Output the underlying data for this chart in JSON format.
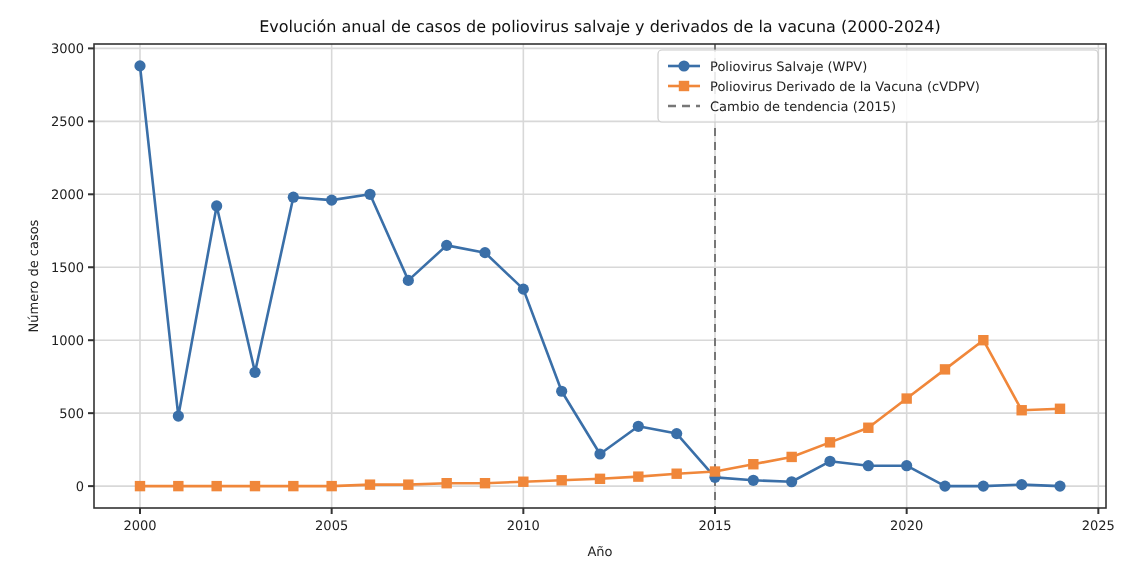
{
  "chart_data": {
    "type": "line",
    "title": "Evolución anual de casos de poliovirus salvaje y derivados de la vacuna (2000-2024)",
    "xlabel": "Año",
    "ylabel": "Número de casos",
    "x": [
      2000,
      2001,
      2002,
      2003,
      2004,
      2005,
      2006,
      2007,
      2008,
      2009,
      2010,
      2011,
      2012,
      2013,
      2014,
      2015,
      2016,
      2017,
      2018,
      2019,
      2020,
      2021,
      2022,
      2023,
      2024
    ],
    "series": [
      {
        "name": "Poliovirus Salvaje (WPV)",
        "color": "#3a6fa8",
        "marker": "circle",
        "values": [
          2880,
          480,
          1920,
          780,
          1980,
          1960,
          2000,
          1410,
          1650,
          1600,
          1350,
          650,
          220,
          410,
          360,
          60,
          40,
          30,
          170,
          140,
          140,
          0,
          0,
          10,
          0
        ]
      },
      {
        "name": "Poliovirus Derivado de la Vacuna (cVDPV)",
        "color": "#f0873a",
        "marker": "square",
        "values": [
          0,
          0,
          0,
          0,
          0,
          0,
          10,
          10,
          20,
          20,
          30,
          40,
          50,
          65,
          85,
          100,
          150,
          200,
          300,
          400,
          600,
          800,
          1000,
          520,
          530
        ]
      }
    ],
    "ref_lines": [
      {
        "axis": "x",
        "value": 2015,
        "label": "Cambio de tendencia (2015)",
        "color": "#777777",
        "line_style": "dashed"
      }
    ],
    "xlim": [
      1998.8,
      2025.2
    ],
    "xticks": [
      2000,
      2005,
      2010,
      2015,
      2020,
      2025
    ],
    "ylim": [
      -150,
      3030
    ],
    "yticks": [
      0,
      500,
      1000,
      1500,
      2000,
      2500,
      3000
    ],
    "grid": true,
    "legend": "top right",
    "line_style": "solid"
  }
}
